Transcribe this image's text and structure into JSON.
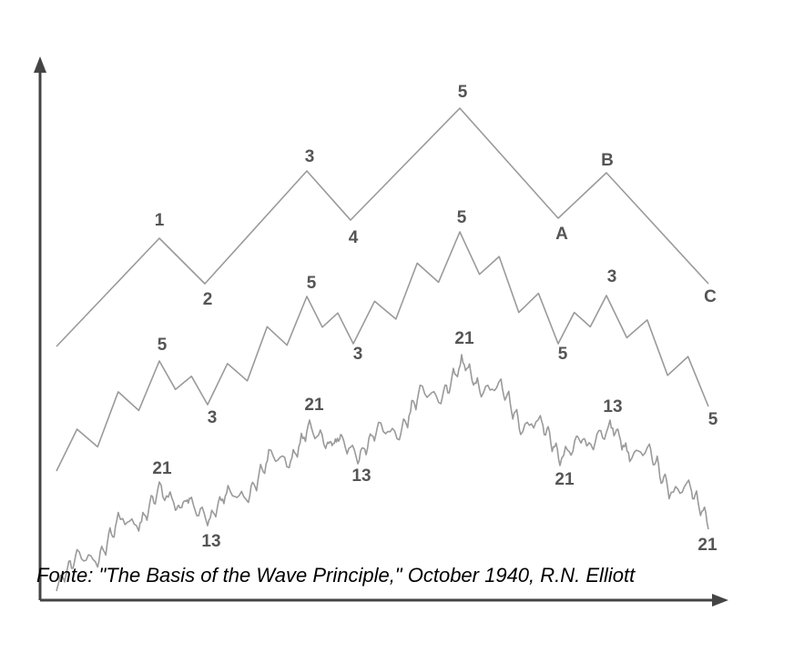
{
  "waves": [
    {
      "labels": [
        "1",
        "2",
        "3",
        "4",
        "5",
        "A",
        "B",
        "C"
      ]
    },
    {
      "labels": [
        "5",
        "3",
        "5",
        "3",
        "5",
        "5",
        "3",
        "5"
      ]
    },
    {
      "labels": [
        "21",
        "13",
        "21",
        "13",
        "21",
        "21",
        "13",
        "21"
      ]
    }
  ],
  "caption": "Fonte: \"The Basis of the Wave Principle,\" October 1940, R.N. Elliott"
}
